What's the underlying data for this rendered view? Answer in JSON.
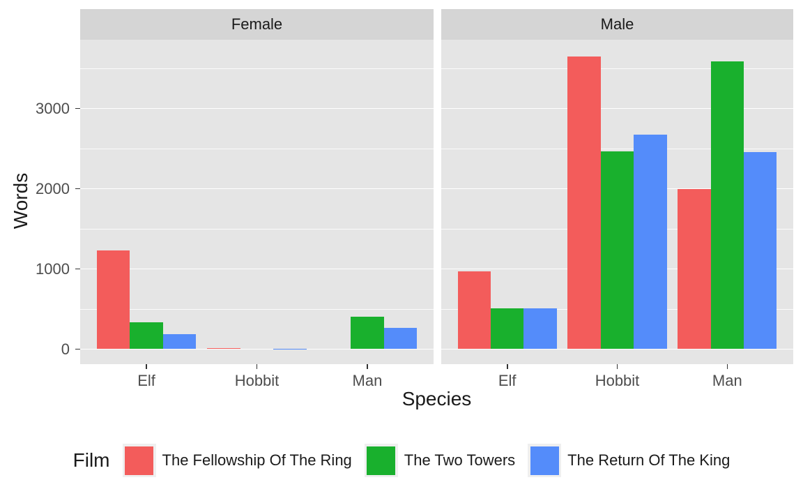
{
  "chart_data": {
    "type": "bar",
    "title": "",
    "facets": [
      {
        "label": "Female",
        "groups": [
          {
            "category": "Elf",
            "values": [
              1229,
              331,
              183
            ]
          },
          {
            "category": "Hobbit",
            "values": [
              14,
              0,
              2
            ]
          },
          {
            "category": "Man",
            "values": [
              0,
              401,
              268
            ]
          }
        ]
      },
      {
        "label": "Male",
        "groups": [
          {
            "category": "Elf",
            "values": [
              971,
              513,
              510
            ]
          },
          {
            "category": "Hobbit",
            "values": [
              3644,
              2463,
              2673
            ]
          },
          {
            "category": "Man",
            "values": [
              1995,
              3589,
              2459
            ]
          }
        ]
      }
    ],
    "series": [
      {
        "name": "The Fellowship Of The Ring",
        "color": "#F35C5B"
      },
      {
        "name": "The Two Towers",
        "color": "#19B02D"
      },
      {
        "name": "The Return Of The King",
        "color": "#548CFA"
      }
    ],
    "categories": [
      "Elf",
      "Hobbit",
      "Man"
    ],
    "xlabel": "Species",
    "ylabel": "Words",
    "legend_title": "Film",
    "legend_position": "bottom",
    "y_ticks": [
      0,
      1000,
      2000,
      3000
    ],
    "y_minor_ticks": [
      500,
      1500,
      2500,
      3500
    ],
    "ylim": [
      0,
      3850
    ],
    "grid": true,
    "colors": {
      "panel_bg": "#E5E5E5",
      "strip_bg": "#D5D5D5",
      "grid": "#FFFFFF",
      "tick_text": "#4D4D4D",
      "title_text": "#1A1A1A",
      "legend_key_bg": "#EFEFEF",
      "tick_mark": "#333333"
    }
  }
}
